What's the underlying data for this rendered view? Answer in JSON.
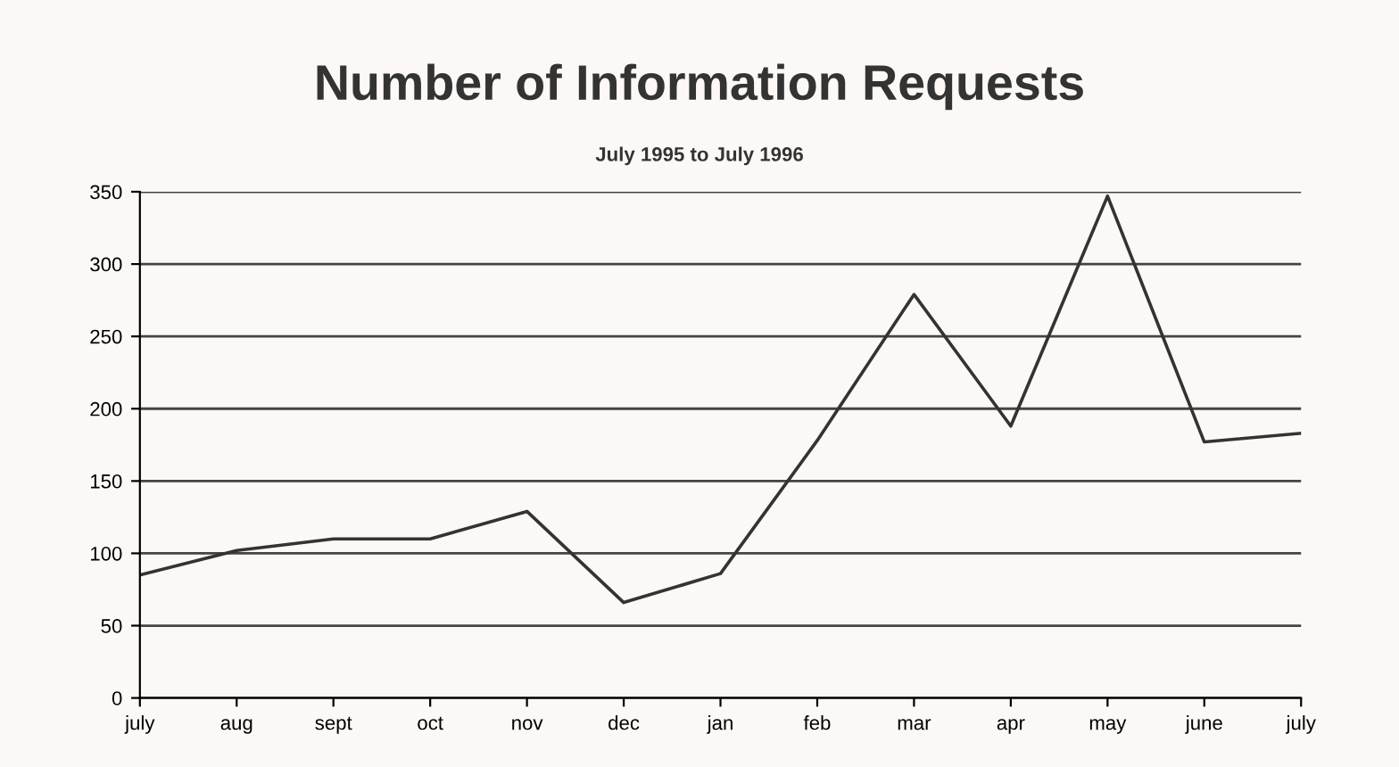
{
  "chart_data": {
    "type": "line",
    "title": "Number of Information Requests",
    "subtitle": "July 1995 to July 1996",
    "categories": [
      "july",
      "aug",
      "sept",
      "oct",
      "nov",
      "dec",
      "jan",
      "feb",
      "mar",
      "apr",
      "may",
      "june",
      "july"
    ],
    "series": [
      {
        "color": "#333333",
        "values": [
          85,
          102,
          110,
          110,
          129,
          66,
          86,
          178,
          279,
          188,
          347,
          177,
          183
        ]
      }
    ],
    "ylim": [
      0,
      350
    ],
    "yticks": [
      0,
      50,
      100,
      150,
      200,
      250,
      300,
      350
    ],
    "grid": "y",
    "legend": false,
    "marker": "none",
    "line_style": "solid"
  }
}
